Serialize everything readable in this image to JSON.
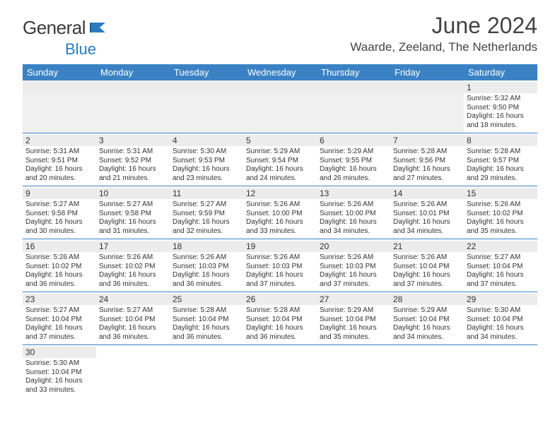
{
  "brand": {
    "part1": "General",
    "part2": "Blue"
  },
  "title": "June 2024",
  "location": "Waarde, Zeeland, The Netherlands",
  "colors": {
    "header_bg": "#3a82c4",
    "daynum_bg": "#ececec",
    "divider": "#3a82c4",
    "text": "#333333",
    "brand_primary": "#3a3a3a",
    "brand_accent": "#2a7bbf"
  },
  "weekdays": [
    "Sunday",
    "Monday",
    "Tuesday",
    "Wednesday",
    "Thursday",
    "Friday",
    "Saturday"
  ],
  "weeks": [
    [
      {
        "day": "",
        "sunrise": "",
        "sunset": "",
        "daylight1": "",
        "daylight2": "",
        "blank": true
      },
      {
        "day": "",
        "sunrise": "",
        "sunset": "",
        "daylight1": "",
        "daylight2": "",
        "blank": true
      },
      {
        "day": "",
        "sunrise": "",
        "sunset": "",
        "daylight1": "",
        "daylight2": "",
        "blank": true
      },
      {
        "day": "",
        "sunrise": "",
        "sunset": "",
        "daylight1": "",
        "daylight2": "",
        "blank": true
      },
      {
        "day": "",
        "sunrise": "",
        "sunset": "",
        "daylight1": "",
        "daylight2": "",
        "blank": true
      },
      {
        "day": "",
        "sunrise": "",
        "sunset": "",
        "daylight1": "",
        "daylight2": "",
        "blank": true
      },
      {
        "day": "1",
        "sunrise": "Sunrise: 5:32 AM",
        "sunset": "Sunset: 9:50 PM",
        "daylight1": "Daylight: 16 hours",
        "daylight2": "and 18 minutes."
      }
    ],
    [
      {
        "day": "2",
        "sunrise": "Sunrise: 5:31 AM",
        "sunset": "Sunset: 9:51 PM",
        "daylight1": "Daylight: 16 hours",
        "daylight2": "and 20 minutes."
      },
      {
        "day": "3",
        "sunrise": "Sunrise: 5:31 AM",
        "sunset": "Sunset: 9:52 PM",
        "daylight1": "Daylight: 16 hours",
        "daylight2": "and 21 minutes."
      },
      {
        "day": "4",
        "sunrise": "Sunrise: 5:30 AM",
        "sunset": "Sunset: 9:53 PM",
        "daylight1": "Daylight: 16 hours",
        "daylight2": "and 23 minutes."
      },
      {
        "day": "5",
        "sunrise": "Sunrise: 5:29 AM",
        "sunset": "Sunset: 9:54 PM",
        "daylight1": "Daylight: 16 hours",
        "daylight2": "and 24 minutes."
      },
      {
        "day": "6",
        "sunrise": "Sunrise: 5:29 AM",
        "sunset": "Sunset: 9:55 PM",
        "daylight1": "Daylight: 16 hours",
        "daylight2": "and 26 minutes."
      },
      {
        "day": "7",
        "sunrise": "Sunrise: 5:28 AM",
        "sunset": "Sunset: 9:56 PM",
        "daylight1": "Daylight: 16 hours",
        "daylight2": "and 27 minutes."
      },
      {
        "day": "8",
        "sunrise": "Sunrise: 5:28 AM",
        "sunset": "Sunset: 9:57 PM",
        "daylight1": "Daylight: 16 hours",
        "daylight2": "and 29 minutes."
      }
    ],
    [
      {
        "day": "9",
        "sunrise": "Sunrise: 5:27 AM",
        "sunset": "Sunset: 9:58 PM",
        "daylight1": "Daylight: 16 hours",
        "daylight2": "and 30 minutes."
      },
      {
        "day": "10",
        "sunrise": "Sunrise: 5:27 AM",
        "sunset": "Sunset: 9:58 PM",
        "daylight1": "Daylight: 16 hours",
        "daylight2": "and 31 minutes."
      },
      {
        "day": "11",
        "sunrise": "Sunrise: 5:27 AM",
        "sunset": "Sunset: 9:59 PM",
        "daylight1": "Daylight: 16 hours",
        "daylight2": "and 32 minutes."
      },
      {
        "day": "12",
        "sunrise": "Sunrise: 5:26 AM",
        "sunset": "Sunset: 10:00 PM",
        "daylight1": "Daylight: 16 hours",
        "daylight2": "and 33 minutes."
      },
      {
        "day": "13",
        "sunrise": "Sunrise: 5:26 AM",
        "sunset": "Sunset: 10:00 PM",
        "daylight1": "Daylight: 16 hours",
        "daylight2": "and 34 minutes."
      },
      {
        "day": "14",
        "sunrise": "Sunrise: 5:26 AM",
        "sunset": "Sunset: 10:01 PM",
        "daylight1": "Daylight: 16 hours",
        "daylight2": "and 34 minutes."
      },
      {
        "day": "15",
        "sunrise": "Sunrise: 5:26 AM",
        "sunset": "Sunset: 10:02 PM",
        "daylight1": "Daylight: 16 hours",
        "daylight2": "and 35 minutes."
      }
    ],
    [
      {
        "day": "16",
        "sunrise": "Sunrise: 5:26 AM",
        "sunset": "Sunset: 10:02 PM",
        "daylight1": "Daylight: 16 hours",
        "daylight2": "and 36 minutes."
      },
      {
        "day": "17",
        "sunrise": "Sunrise: 5:26 AM",
        "sunset": "Sunset: 10:02 PM",
        "daylight1": "Daylight: 16 hours",
        "daylight2": "and 36 minutes."
      },
      {
        "day": "18",
        "sunrise": "Sunrise: 5:26 AM",
        "sunset": "Sunset: 10:03 PM",
        "daylight1": "Daylight: 16 hours",
        "daylight2": "and 36 minutes."
      },
      {
        "day": "19",
        "sunrise": "Sunrise: 5:26 AM",
        "sunset": "Sunset: 10:03 PM",
        "daylight1": "Daylight: 16 hours",
        "daylight2": "and 37 minutes."
      },
      {
        "day": "20",
        "sunrise": "Sunrise: 5:26 AM",
        "sunset": "Sunset: 10:03 PM",
        "daylight1": "Daylight: 16 hours",
        "daylight2": "and 37 minutes."
      },
      {
        "day": "21",
        "sunrise": "Sunrise: 5:26 AM",
        "sunset": "Sunset: 10:04 PM",
        "daylight1": "Daylight: 16 hours",
        "daylight2": "and 37 minutes."
      },
      {
        "day": "22",
        "sunrise": "Sunrise: 5:27 AM",
        "sunset": "Sunset: 10:04 PM",
        "daylight1": "Daylight: 16 hours",
        "daylight2": "and 37 minutes."
      }
    ],
    [
      {
        "day": "23",
        "sunrise": "Sunrise: 5:27 AM",
        "sunset": "Sunset: 10:04 PM",
        "daylight1": "Daylight: 16 hours",
        "daylight2": "and 37 minutes."
      },
      {
        "day": "24",
        "sunrise": "Sunrise: 5:27 AM",
        "sunset": "Sunset: 10:04 PM",
        "daylight1": "Daylight: 16 hours",
        "daylight2": "and 36 minutes."
      },
      {
        "day": "25",
        "sunrise": "Sunrise: 5:28 AM",
        "sunset": "Sunset: 10:04 PM",
        "daylight1": "Daylight: 16 hours",
        "daylight2": "and 36 minutes."
      },
      {
        "day": "26",
        "sunrise": "Sunrise: 5:28 AM",
        "sunset": "Sunset: 10:04 PM",
        "daylight1": "Daylight: 16 hours",
        "daylight2": "and 36 minutes."
      },
      {
        "day": "27",
        "sunrise": "Sunrise: 5:29 AM",
        "sunset": "Sunset: 10:04 PM",
        "daylight1": "Daylight: 16 hours",
        "daylight2": "and 35 minutes."
      },
      {
        "day": "28",
        "sunrise": "Sunrise: 5:29 AM",
        "sunset": "Sunset: 10:04 PM",
        "daylight1": "Daylight: 16 hours",
        "daylight2": "and 34 minutes."
      },
      {
        "day": "29",
        "sunrise": "Sunrise: 5:30 AM",
        "sunset": "Sunset: 10:04 PM",
        "daylight1": "Daylight: 16 hours",
        "daylight2": "and 34 minutes."
      }
    ],
    [
      {
        "day": "30",
        "sunrise": "Sunrise: 5:30 AM",
        "sunset": "Sunset: 10:04 PM",
        "daylight1": "Daylight: 16 hours",
        "daylight2": "and 33 minutes."
      },
      {
        "day": "",
        "sunrise": "",
        "sunset": "",
        "daylight1": "",
        "daylight2": "",
        "empty": true
      },
      {
        "day": "",
        "sunrise": "",
        "sunset": "",
        "daylight1": "",
        "daylight2": "",
        "empty": true
      },
      {
        "day": "",
        "sunrise": "",
        "sunset": "",
        "daylight1": "",
        "daylight2": "",
        "empty": true
      },
      {
        "day": "",
        "sunrise": "",
        "sunset": "",
        "daylight1": "",
        "daylight2": "",
        "empty": true
      },
      {
        "day": "",
        "sunrise": "",
        "sunset": "",
        "daylight1": "",
        "daylight2": "",
        "empty": true
      },
      {
        "day": "",
        "sunrise": "",
        "sunset": "",
        "daylight1": "",
        "daylight2": "",
        "empty": true
      }
    ]
  ]
}
